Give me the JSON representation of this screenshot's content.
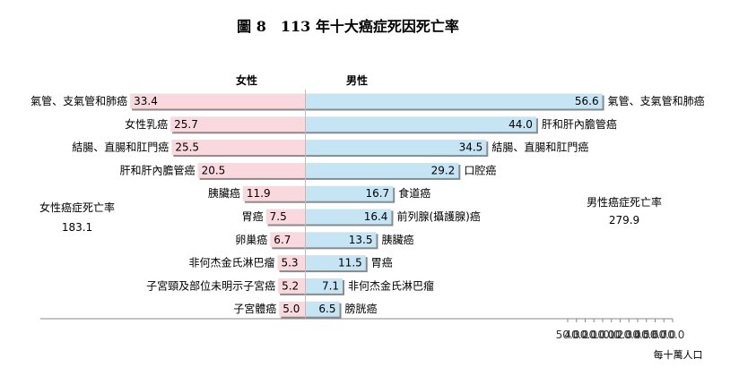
{
  "chart_data": {
    "type": "bar",
    "title": "圖 8　113 年十大癌症死因死亡率",
    "xlabel": "每十萬人口",
    "xlim": [
      50,
      70
    ],
    "xticks": [
      "50.0",
      "40.0",
      "30.0",
      "20.0",
      "10.0",
      "0.0",
      "10.0",
      "20.0",
      "30.0",
      "40.0",
      "50.0",
      "60.0",
      "70.0"
    ],
    "female": {
      "name": "女性",
      "color": "#f9d9dd",
      "total_label": "女性癌症死亡率",
      "total_value": "183.1",
      "categories": [
        "氣管、支氣管和肺癌",
        "女性乳癌",
        "結腸、直腸和肛門癌",
        "肝和肝內膽管癌",
        "胰臟癌",
        "胃癌",
        "卵巢癌",
        "非何杰金氏淋巴瘤",
        "子宮頸及部位未明示子宮癌",
        "子宮體癌"
      ],
      "values": [
        33.4,
        25.7,
        25.5,
        20.5,
        11.9,
        7.5,
        6.7,
        5.3,
        5.2,
        5.0
      ],
      "labels": [
        "33.4",
        "25.7",
        "25.5",
        "20.5",
        "11.9",
        "7.5",
        "6.7",
        "5.3",
        "5.2",
        "5.0"
      ]
    },
    "male": {
      "name": "男性",
      "color": "#c5e4f4",
      "total_label": "男性癌症死亡率",
      "total_value": "279.9",
      "categories": [
        "氣管、支氣管和肺癌",
        "肝和肝內膽管癌",
        "結腸、直腸和肛門癌",
        "口腔癌",
        "食道癌",
        "前列腺(攝護腺)癌",
        "胰臟癌",
        "胃癌",
        "非何杰金氏淋巴瘤",
        "膀胱癌"
      ],
      "values": [
        56.6,
        44.0,
        34.5,
        29.2,
        16.7,
        16.4,
        13.5,
        11.5,
        7.1,
        6.5
      ],
      "labels": [
        "56.6",
        "44.0",
        "34.5",
        "29.2",
        "16.7",
        "16.4",
        "13.5",
        "11.5",
        "7.1",
        "6.5"
      ]
    },
    "grid": false
  }
}
